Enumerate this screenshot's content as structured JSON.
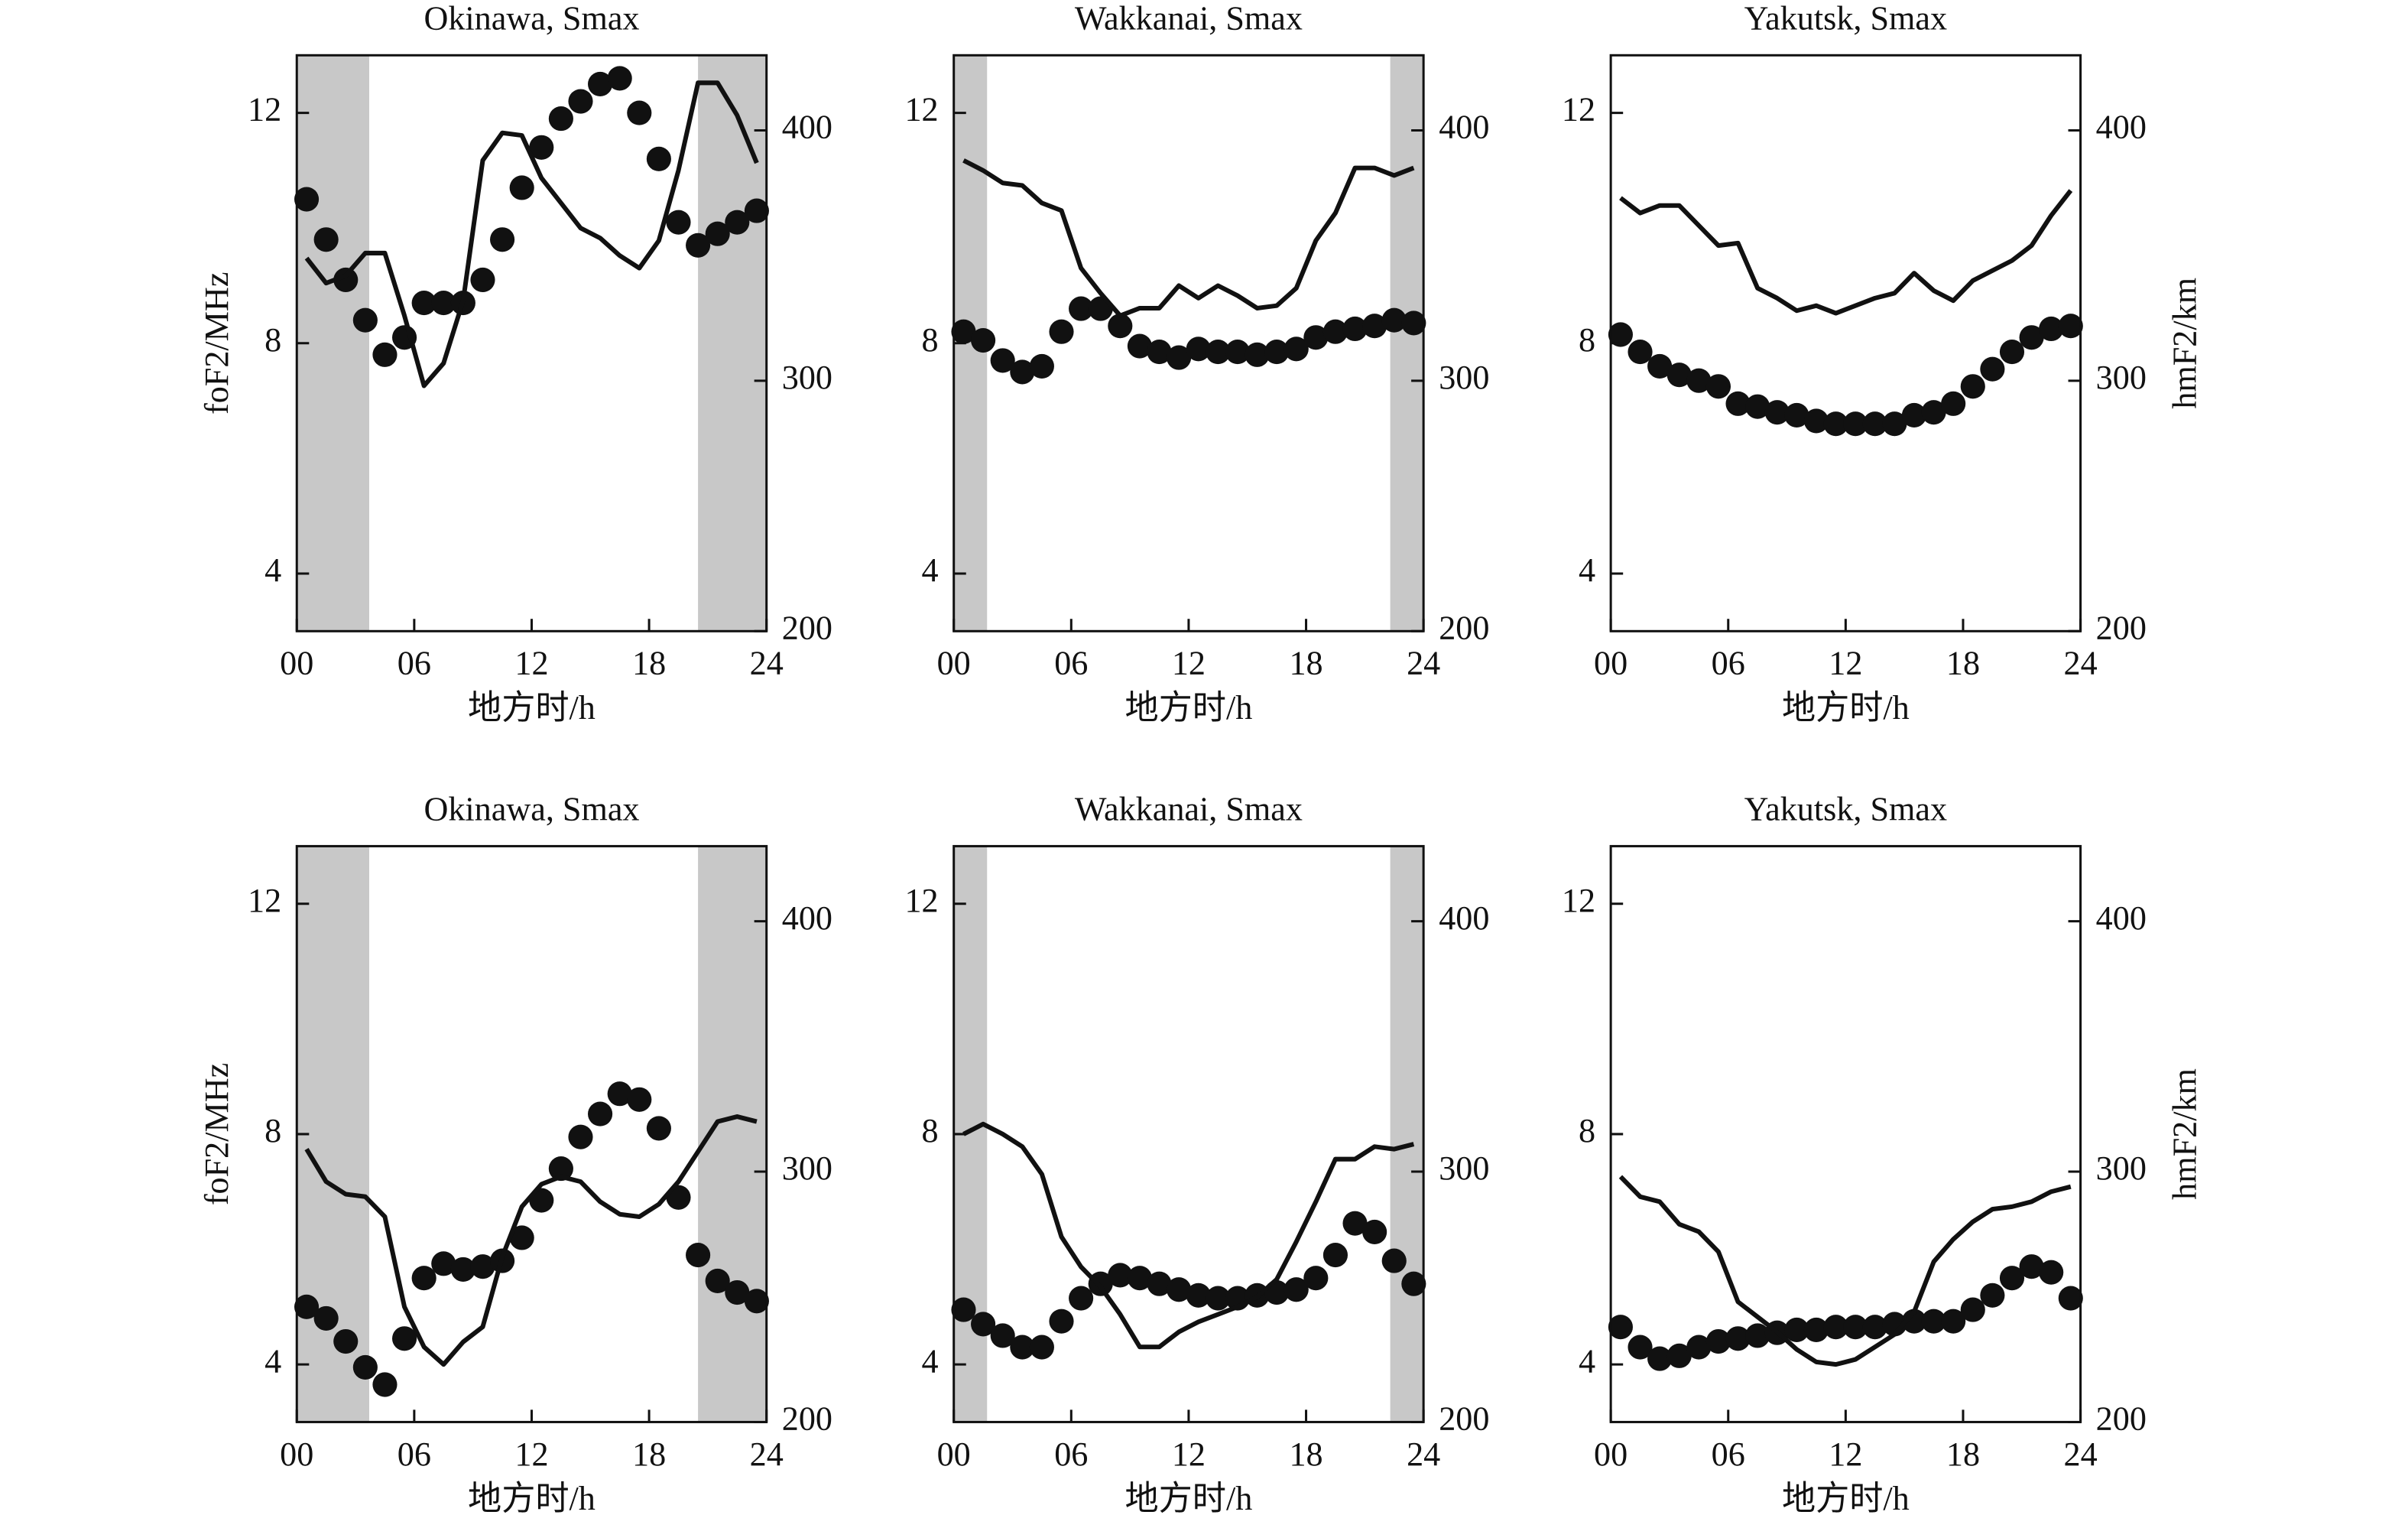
{
  "chart_data": [
    {
      "type": "line",
      "title": "Okinawa, Smax",
      "xlabel": "地方时/h",
      "ylabel": "foF2/MHz",
      "xlim": [
        0,
        24
      ],
      "xticks": [
        {
          "value": 0,
          "label": "00"
        },
        {
          "value": 6,
          "label": "06"
        },
        {
          "value": 12,
          "label": "12"
        },
        {
          "value": 18,
          "label": "18"
        },
        {
          "value": 24,
          "label": "24"
        }
      ],
      "ylim": [
        3,
        13
      ],
      "yticks": [
        4,
        8,
        12
      ],
      "y2lim": [
        200,
        430
      ],
      "y2ticks": [
        200,
        300,
        400
      ],
      "shaded": [
        [
          0,
          3.7
        ],
        [
          20.5,
          24
        ]
      ],
      "shade_color": "#c8c8c8",
      "x": [
        0.5,
        1.5,
        2.5,
        3.5,
        4.5,
        5.5,
        6.5,
        7.5,
        8.5,
        9.5,
        10.5,
        11.5,
        12.5,
        13.5,
        14.5,
        15.5,
        16.5,
        17.5,
        18.5,
        19.5,
        20.5,
        21.5,
        22.5,
        23.5
      ],
      "series": [
        {
          "color": "#111111",
          "marker": "circle",
          "values": [
            10.5,
            9.8,
            9.1,
            8.4,
            7.8,
            8.1,
            8.7,
            8.7,
            8.7,
            9.1,
            9.8,
            10.7,
            11.4,
            11.9,
            12.2,
            12.5,
            12.6,
            12.0,
            11.2,
            10.1,
            9.7,
            9.9,
            10.1,
            10.3
          ]
        },
        {
          "color": "#111111",
          "axis": "y2",
          "values": [
            349,
            339,
            342,
            351,
            351,
            326,
            298,
            307,
            332,
            388,
            399,
            398,
            381,
            371,
            361,
            357,
            350,
            345,
            356,
            384,
            419,
            419,
            406,
            387
          ]
        }
      ]
    },
    {
      "type": "line",
      "title": "Wakkanai, Smax",
      "xlabel": "地方时/h",
      "xlim": [
        0,
        24
      ],
      "xticks": [
        {
          "value": 0,
          "label": "00"
        },
        {
          "value": 6,
          "label": "06"
        },
        {
          "value": 12,
          "label": "12"
        },
        {
          "value": 18,
          "label": "18"
        },
        {
          "value": 24,
          "label": "24"
        }
      ],
      "ylim": [
        3,
        13
      ],
      "yticks": [
        4,
        8,
        12
      ],
      "y2lim": [
        200,
        430
      ],
      "y2ticks": [
        200,
        300,
        400
      ],
      "shaded": [
        [
          0,
          1.7
        ],
        [
          22.3,
          24
        ]
      ],
      "shade_color": "#c8c8c8",
      "x": [
        0.5,
        1.5,
        2.5,
        3.5,
        4.5,
        5.5,
        6.5,
        7.5,
        8.5,
        9.5,
        10.5,
        11.5,
        12.5,
        13.5,
        14.5,
        15.5,
        16.5,
        17.5,
        18.5,
        19.5,
        20.5,
        21.5,
        22.5,
        23.5
      ],
      "series": [
        {
          "color": "#111111",
          "marker": "circle",
          "values": [
            8.2,
            8.05,
            7.7,
            7.5,
            7.6,
            8.2,
            8.6,
            8.6,
            8.3,
            7.95,
            7.85,
            7.75,
            7.9,
            7.85,
            7.85,
            7.8,
            7.85,
            7.9,
            8.1,
            8.2,
            8.25,
            8.3,
            8.4,
            8.35
          ]
        },
        {
          "color": "#111111",
          "axis": "y2",
          "values": [
            388,
            384,
            379,
            378,
            371,
            368,
            345,
            335,
            326,
            329,
            329,
            338,
            333,
            338,
            334,
            329,
            330,
            337,
            356,
            367,
            385,
            385,
            382,
            385
          ]
        }
      ]
    },
    {
      "type": "line",
      "title": "Yakutsk, Smax",
      "xlabel": "地方时/h",
      "y2label": "hmF2/km",
      "xlim": [
        0,
        24
      ],
      "xticks": [
        {
          "value": 0,
          "label": "00"
        },
        {
          "value": 6,
          "label": "06"
        },
        {
          "value": 12,
          "label": "12"
        },
        {
          "value": 18,
          "label": "18"
        },
        {
          "value": 24,
          "label": "24"
        }
      ],
      "ylim": [
        3,
        13
      ],
      "yticks": [
        4,
        8,
        12
      ],
      "y2lim": [
        200,
        430
      ],
      "y2ticks": [
        200,
        300,
        400
      ],
      "x": [
        0.5,
        1.5,
        2.5,
        3.5,
        4.5,
        5.5,
        6.5,
        7.5,
        8.5,
        9.5,
        10.5,
        11.5,
        12.5,
        13.5,
        14.5,
        15.5,
        16.5,
        17.5,
        18.5,
        19.5,
        20.5,
        21.5,
        22.5,
        23.5
      ],
      "series": [
        {
          "color": "#111111",
          "marker": "circle",
          "values": [
            8.15,
            7.85,
            7.6,
            7.45,
            7.35,
            7.25,
            6.95,
            6.9,
            6.8,
            6.75,
            6.65,
            6.6,
            6.6,
            6.6,
            6.6,
            6.75,
            6.8,
            6.95,
            7.25,
            7.55,
            7.85,
            8.1,
            8.25,
            8.3
          ]
        },
        {
          "color": "#111111",
          "axis": "y2",
          "values": [
            373,
            367,
            370,
            370,
            362,
            354,
            355,
            337,
            333,
            328,
            330,
            327,
            330,
            333,
            335,
            343,
            336,
            332,
            340,
            344,
            348,
            354,
            366,
            376
          ]
        }
      ]
    },
    {
      "type": "line",
      "title": "Okinawa, Smax",
      "xlabel": "地方时/h",
      "ylabel": "foF2/MHz",
      "xlim": [
        0,
        24
      ],
      "xticks": [
        {
          "value": 0,
          "label": "00"
        },
        {
          "value": 6,
          "label": "06"
        },
        {
          "value": 12,
          "label": "12"
        },
        {
          "value": 18,
          "label": "18"
        },
        {
          "value": 24,
          "label": "24"
        }
      ],
      "ylim": [
        3,
        13
      ],
      "yticks": [
        4,
        8,
        12
      ],
      "y2lim": [
        200,
        430
      ],
      "y2ticks": [
        200,
        300,
        400
      ],
      "shaded": [
        [
          0,
          3.7
        ],
        [
          20.5,
          24
        ]
      ],
      "shade_color": "#c8c8c8",
      "x": [
        0.5,
        1.5,
        2.5,
        3.5,
        4.5,
        5.5,
        6.5,
        7.5,
        8.5,
        9.5,
        10.5,
        11.5,
        12.5,
        13.5,
        14.5,
        15.5,
        16.5,
        17.5,
        18.5,
        19.5,
        20.5,
        21.5,
        22.5,
        23.5
      ],
      "series": [
        {
          "color": "#111111",
          "marker": "circle",
          "values": [
            5.0,
            4.8,
            4.4,
            3.95,
            3.65,
            4.45,
            5.5,
            5.75,
            5.65,
            5.7,
            5.8,
            6.2,
            6.85,
            7.4,
            7.95,
            8.35,
            8.7,
            8.6,
            8.1,
            6.9,
            5.9,
            5.45,
            5.25,
            5.1
          ]
        },
        {
          "color": "#111111",
          "axis": "y2",
          "values": [
            309,
            296,
            291,
            290,
            282,
            246,
            230,
            223,
            232,
            238,
            266,
            286,
            295,
            298,
            296,
            288,
            283,
            282,
            287,
            296,
            308,
            320,
            322,
            320
          ]
        }
      ]
    },
    {
      "type": "line",
      "title": "Wakkanai, Smax",
      "xlabel": "地方时/h",
      "xlim": [
        0,
        24
      ],
      "xticks": [
        {
          "value": 0,
          "label": "00"
        },
        {
          "value": 6,
          "label": "06"
        },
        {
          "value": 12,
          "label": "12"
        },
        {
          "value": 18,
          "label": "18"
        },
        {
          "value": 24,
          "label": "24"
        }
      ],
      "ylim": [
        3,
        13
      ],
      "yticks": [
        4,
        8,
        12
      ],
      "y2lim": [
        200,
        430
      ],
      "y2ticks": [
        200,
        300,
        400
      ],
      "shaded": [
        [
          0,
          1.7
        ],
        [
          22.3,
          24
        ]
      ],
      "shade_color": "#c8c8c8",
      "x": [
        0.5,
        1.5,
        2.5,
        3.5,
        4.5,
        5.5,
        6.5,
        7.5,
        8.5,
        9.5,
        10.5,
        11.5,
        12.5,
        13.5,
        14.5,
        15.5,
        16.5,
        17.5,
        18.5,
        19.5,
        20.5,
        21.5,
        22.5,
        23.5
      ],
      "series": [
        {
          "color": "#111111",
          "marker": "circle",
          "values": [
            4.95,
            4.7,
            4.5,
            4.3,
            4.3,
            4.75,
            5.15,
            5.4,
            5.55,
            5.5,
            5.4,
            5.3,
            5.2,
            5.15,
            5.15,
            5.2,
            5.25,
            5.3,
            5.5,
            5.9,
            6.45,
            6.3,
            5.8,
            5.4
          ]
        },
        {
          "color": "#111111",
          "axis": "y2",
          "values": [
            315,
            319,
            315,
            310,
            299,
            274,
            262,
            254,
            243,
            230,
            230,
            236,
            240,
            243,
            246,
            250,
            257,
            272,
            288,
            305,
            305,
            310,
            309,
            311
          ]
        }
      ]
    },
    {
      "type": "line",
      "title": "Yakutsk, Smax",
      "xlabel": "地方时/h",
      "y2label": "hmF2/km",
      "xlim": [
        0,
        24
      ],
      "xticks": [
        {
          "value": 0,
          "label": "00"
        },
        {
          "value": 6,
          "label": "06"
        },
        {
          "value": 12,
          "label": "12"
        },
        {
          "value": 18,
          "label": "18"
        },
        {
          "value": 24,
          "label": "24"
        }
      ],
      "ylim": [
        3,
        13
      ],
      "yticks": [
        4,
        8,
        12
      ],
      "y2lim": [
        200,
        430
      ],
      "y2ticks": [
        200,
        300,
        400
      ],
      "x": [
        0.5,
        1.5,
        2.5,
        3.5,
        4.5,
        5.5,
        6.5,
        7.5,
        8.5,
        9.5,
        10.5,
        11.5,
        12.5,
        13.5,
        14.5,
        15.5,
        16.5,
        17.5,
        18.5,
        19.5,
        20.5,
        21.5,
        22.5,
        23.5
      ],
      "series": [
        {
          "color": "#111111",
          "marker": "circle",
          "values": [
            4.65,
            4.3,
            4.1,
            4.15,
            4.3,
            4.4,
            4.45,
            4.5,
            4.55,
            4.6,
            4.6,
            4.65,
            4.65,
            4.65,
            4.7,
            4.75,
            4.75,
            4.75,
            4.95,
            5.2,
            5.5,
            5.7,
            5.6,
            5.15
          ]
        },
        {
          "color": "#111111",
          "axis": "y2",
          "values": [
            298,
            290,
            288,
            279,
            276,
            268,
            248,
            242,
            236,
            229,
            224,
            223,
            225,
            230,
            235,
            244,
            264,
            273,
            280,
            285,
            286,
            288,
            292,
            294
          ]
        }
      ]
    }
  ]
}
